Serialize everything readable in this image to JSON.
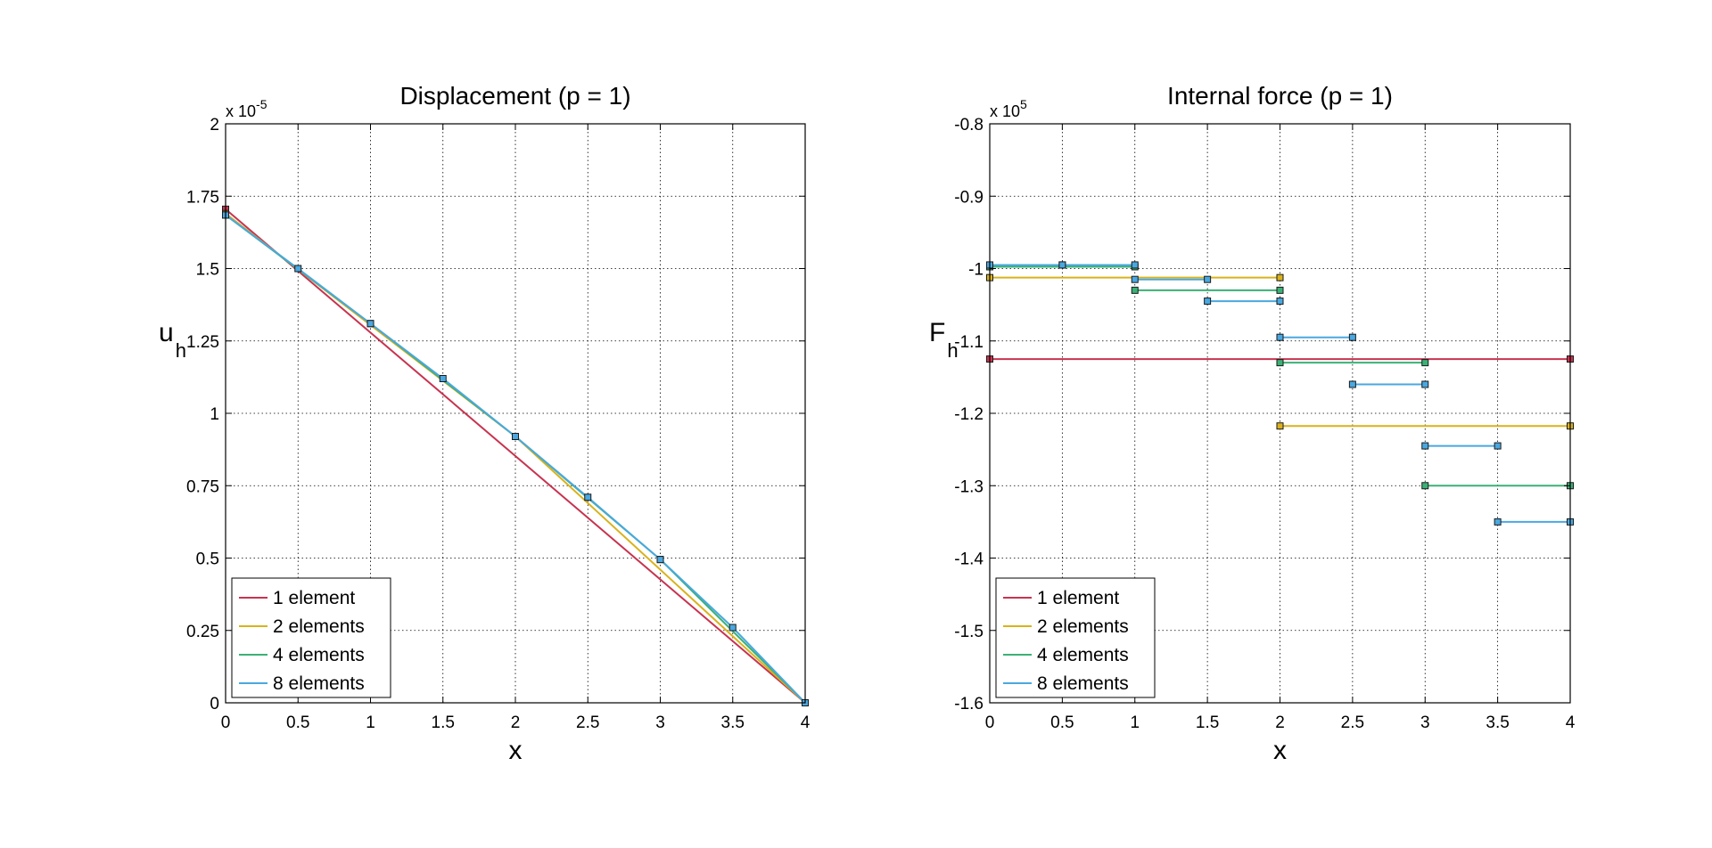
{
  "chart_data": [
    {
      "type": "line",
      "title": "Displacement (p = 1)",
      "xlabel": "x",
      "ylabel": "u",
      "ylabel_sub": "h",
      "multiplier_base": "x 10",
      "multiplier_exp": "-5",
      "xlim": [
        0,
        4
      ],
      "ylim": [
        0,
        2
      ],
      "xticks": [
        0,
        0.5,
        1,
        1.5,
        2,
        2.5,
        3,
        3.5,
        4
      ],
      "xtick_labels": [
        "0",
        "0.5",
        "1",
        "1.5",
        "2",
        "2.5",
        "3",
        "3.5",
        "4"
      ],
      "yticks": [
        0,
        0.25,
        0.5,
        0.75,
        1,
        1.25,
        1.5,
        1.75,
        2
      ],
      "ytick_labels": [
        "0",
        "0.25",
        "0.5",
        "0.75",
        "1",
        "1.25",
        "1.5",
        "1.75",
        "2"
      ],
      "grid": true,
      "legend_position": "bottom-left",
      "series": [
        {
          "name": "1 element",
          "color": "#c8334f",
          "x": [
            0,
            4
          ],
          "y": [
            1.705,
            0
          ]
        },
        {
          "name": "2 elements",
          "color": "#d9b21c",
          "x": [
            0,
            2,
            4
          ],
          "y": [
            1.69,
            0.92,
            0
          ]
        },
        {
          "name": "4 elements",
          "color": "#3bb176",
          "x": [
            0,
            1,
            2,
            3,
            4
          ],
          "y": [
            1.685,
            1.31,
            0.92,
            0.495,
            0
          ]
        },
        {
          "name": "8 elements",
          "color": "#4aa8e0",
          "x": [
            0,
            0.5,
            1,
            1.5,
            2,
            2.5,
            3,
            3.5,
            4
          ],
          "y": [
            1.685,
            1.5,
            1.31,
            1.12,
            0.92,
            0.71,
            0.495,
            0.26,
            0
          ]
        }
      ]
    },
    {
      "type": "line",
      "title": "Internal force (p = 1)",
      "xlabel": "x",
      "ylabel": "F",
      "ylabel_sub": "h",
      "multiplier_base": "x 10",
      "multiplier_exp": "5",
      "xlim": [
        0,
        4
      ],
      "ylim": [
        -1.6,
        -0.8
      ],
      "xticks": [
        0,
        0.5,
        1,
        1.5,
        2,
        2.5,
        3,
        3.5,
        4
      ],
      "xtick_labels": [
        "0",
        "0.5",
        "1",
        "1.5",
        "2",
        "2.5",
        "3",
        "3.5",
        "4"
      ],
      "yticks": [
        -1.6,
        -1.5,
        -1.4,
        -1.3,
        -1.2,
        -1.1,
        -1.0,
        -0.9,
        -0.8
      ],
      "ytick_labels": [
        "-1.6",
        "-1.5",
        "-1.4",
        "-1.3",
        "-1.2",
        "-1.1",
        "-1",
        "-0.9",
        "-0.8"
      ],
      "grid": true,
      "legend_position": "bottom-left",
      "series": [
        {
          "name": "1 element",
          "color": "#c8334f",
          "segments": [
            [
              0,
              4,
              -1.125
            ]
          ]
        },
        {
          "name": "2 elements",
          "color": "#d9b21c",
          "segments": [
            [
              0,
              2,
              -1.0125
            ],
            [
              2,
              4,
              -1.2175
            ]
          ]
        },
        {
          "name": "4 elements",
          "color": "#3bb176",
          "segments": [
            [
              0,
              1,
              -0.9975
            ],
            [
              1,
              2,
              -1.03
            ],
            [
              2,
              3,
              -1.13
            ],
            [
              3,
              4,
              -1.3
            ]
          ]
        },
        {
          "name": "8 elements",
          "color": "#4aa8e0",
          "segments": [
            [
              0,
              0.5,
              -0.995
            ],
            [
              0.5,
              1,
              -0.995
            ],
            [
              1,
              1.5,
              -1.015
            ],
            [
              1.5,
              2,
              -1.045
            ],
            [
              2,
              2.5,
              -1.095
            ],
            [
              2.5,
              3,
              -1.16
            ],
            [
              3,
              3.5,
              -1.245
            ],
            [
              3.5,
              4,
              -1.35
            ]
          ]
        }
      ]
    }
  ]
}
